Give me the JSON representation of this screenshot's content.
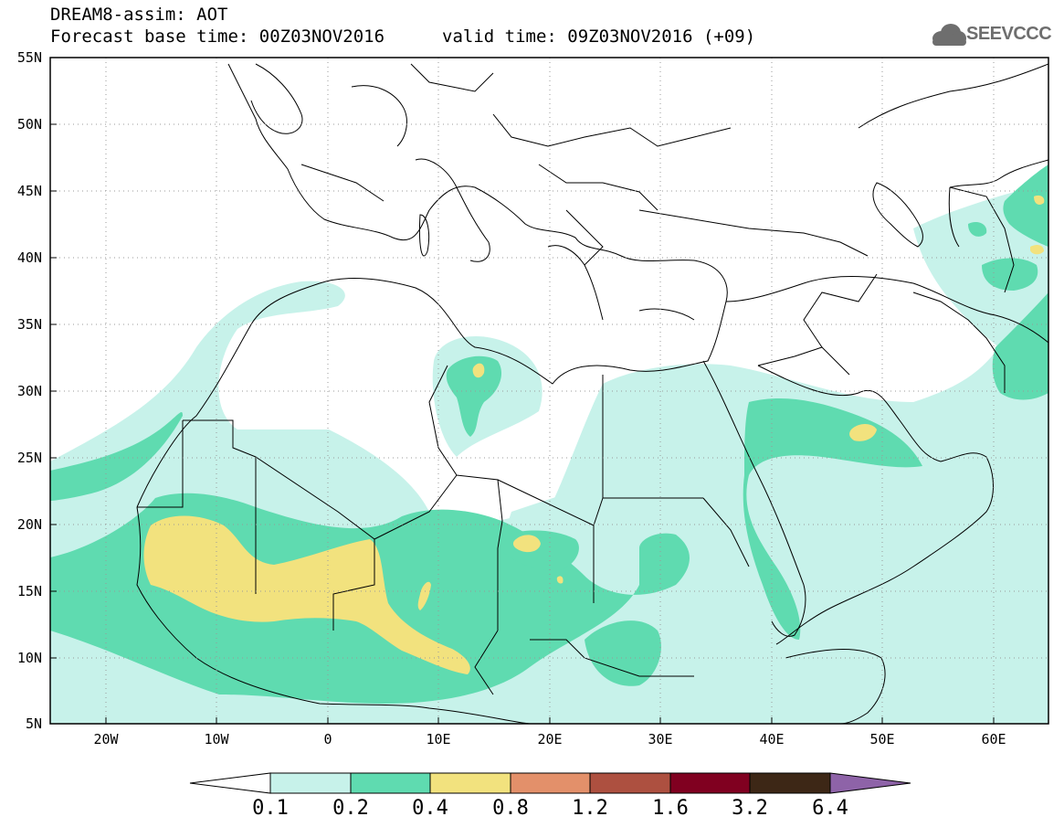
{
  "title": {
    "line1": "DREAM8-assim: AOT",
    "base": "Forecast base time: 00Z03NOV2016",
    "valid": "valid time: 09Z03NOV2016 (+09)"
  },
  "logo": {
    "text": "SEEVCCC",
    "icon": "cloud-icon"
  },
  "map": {
    "extent": {
      "lon": [
        -25,
        65
      ],
      "lat": [
        5,
        55
      ]
    },
    "lat_labels": [
      "55N",
      "50N",
      "45N",
      "40N",
      "35N",
      "30N",
      "25N",
      "20N",
      "15N",
      "10N",
      "5N"
    ],
    "lon_labels": [
      "20W",
      "10W",
      "0",
      "10E",
      "20E",
      "30E",
      "40E",
      "50E",
      "60E"
    ],
    "variable": "AOT"
  },
  "colorbar": {
    "labels": [
      "0.1",
      "0.2",
      "0.4",
      "0.8",
      "1.2",
      "1.6",
      "3.2",
      "6.4"
    ],
    "colors": [
      "#c7f2ea",
      "#5fdbb0",
      "#f2e27e",
      "#e3906a",
      "#ad5040",
      "#800020",
      "#3d2716",
      "#8e63a8"
    ]
  },
  "colors": {
    "aot_01_02": "#c7f2ea",
    "aot_02_04": "#5fdbb0",
    "aot_04_08": "#f2e27e"
  }
}
